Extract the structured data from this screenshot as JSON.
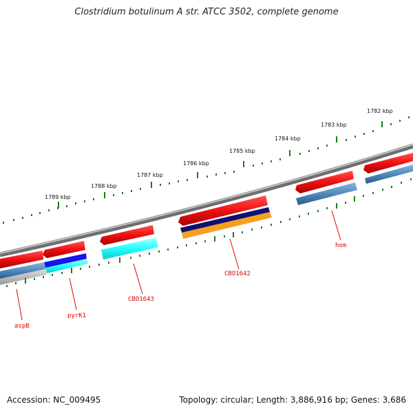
{
  "title": "Clostridium botulinum A str. ATCC 3502, complete genome",
  "accession": "Accession: NC_009495",
  "summary": "Topology: circular; Length: 3,886,916 bp; Genes: 3,686",
  "kbp_labels": [
    "1782 kbp",
    "1783 kbp",
    "1784 kbp",
    "1785 kbp",
    "1786 kbp",
    "1787 kbp",
    "1788 kbp",
    "1789 kbp"
  ],
  "gene_labels": [
    "hom",
    "CBO1642",
    "CBO1643",
    "pyrK1",
    "aspB"
  ],
  "colors": {
    "cds": "#ee1111",
    "backbone": "#8a8a8a",
    "tick": "#1a7a1a",
    "label": "#dd0000",
    "steelblue": "#4682b4",
    "navy": "#101070",
    "orange": "#f5a020",
    "cyan": "#22ffff",
    "blue": "#1515ee",
    "gray": "#a8a8a8"
  }
}
